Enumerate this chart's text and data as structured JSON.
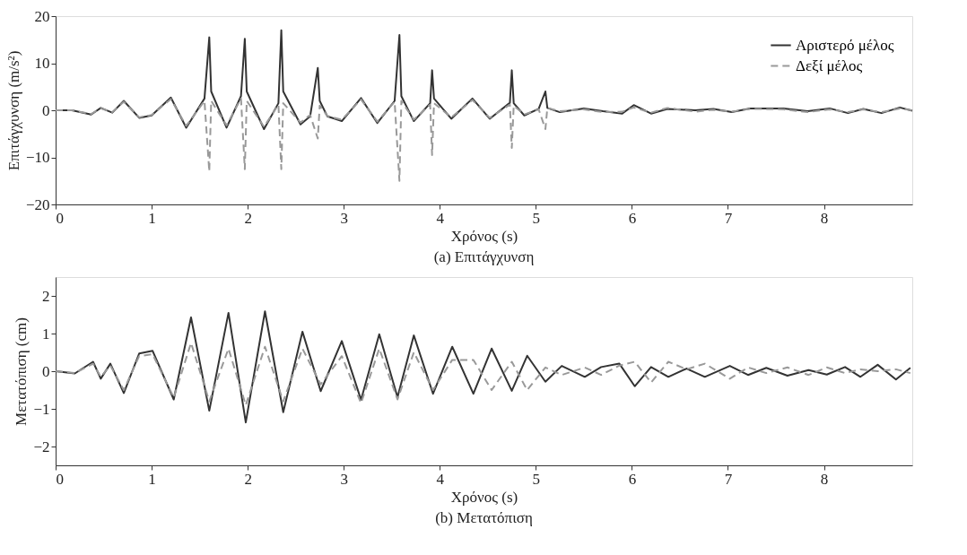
{
  "chart_data": [
    {
      "type": "line",
      "title": "(a) Επιτάγχυνση",
      "xlabel": "Χρόνος (s)",
      "ylabel": "Επιτάγχυνση (m/s²)",
      "x": [
        0,
        0.17,
        0.37,
        0.47,
        0.59,
        0.71,
        0.87,
        1.0,
        1.2,
        1.36,
        1.55,
        1.6,
        1.62,
        1.78,
        1.93,
        1.97,
        1.99,
        2.17,
        2.32,
        2.35,
        2.37,
        2.55,
        2.65,
        2.73,
        2.75,
        2.83,
        2.98,
        3.18,
        3.35,
        3.53,
        3.58,
        3.6,
        3.73,
        3.9,
        3.92,
        3.94,
        4.12,
        4.34,
        4.52,
        4.73,
        4.75,
        4.77,
        4.88,
        5.03,
        5.1,
        5.12,
        5.25,
        5.5,
        5.7,
        5.9,
        6.02,
        6.2,
        6.37,
        6.66,
        6.85,
        7.04,
        7.23,
        7.58,
        7.83,
        8.06,
        8.25,
        8.41,
        8.6,
        8.79,
        8.92
      ],
      "series": [
        {
          "name": "Αριστερό μέλος",
          "color": "#333333",
          "line_style": "solid",
          "values": [
            0,
            0,
            -0.9,
            0.5,
            -0.5,
            2,
            -1.6,
            -1.1,
            2.7,
            -3.7,
            2.5,
            15.5,
            4,
            -3.7,
            3,
            15.2,
            4,
            -4,
            1.5,
            17,
            4,
            -3,
            -1.3,
            9,
            2,
            -1.3,
            -2.3,
            2.6,
            -2.7,
            2,
            16,
            3,
            -2.3,
            1.5,
            8.5,
            2.5,
            -1.8,
            2.5,
            -1.8,
            1.6,
            8.5,
            1.5,
            -1.1,
            0.3,
            4,
            0.5,
            -0.4,
            0.4,
            -0.2,
            -0.7,
            1.1,
            -0.7,
            0.3,
            0,
            0.3,
            -0.4,
            0.4,
            0.4,
            -0.2,
            0.4,
            -0.6,
            0.3,
            -0.6,
            0.6,
            -0.1
          ]
        },
        {
          "name": "Δεξί μέλος",
          "color": "#999999",
          "line_style": "dashed",
          "values": [
            0,
            0,
            -0.8,
            0.4,
            -0.4,
            1.8,
            -1.5,
            -1.0,
            2.4,
            -3.3,
            2,
            -13,
            2,
            -3.2,
            2.5,
            -12.5,
            2,
            -3.5,
            1.2,
            -12.5,
            1.5,
            -2.6,
            -1.0,
            -6,
            1,
            -1.2,
            -2.0,
            2.3,
            -2.4,
            1.8,
            -15,
            2,
            -2.0,
            1.2,
            -9.5,
            1.5,
            -1.5,
            2.2,
            -1.6,
            1.2,
            -8,
            1,
            -0.9,
            0.2,
            -4,
            0.5,
            -0.2,
            0.2,
            -0.4,
            -0.3,
            0.6,
            -0.5,
            0.5,
            -0.3,
            0.1,
            -0.3,
            0.3,
            0.2,
            -0.4,
            0.2,
            -0.4,
            0.2,
            -0.4,
            0.4,
            0.0
          ]
        }
      ],
      "xlim": [
        0,
        8.92
      ],
      "xticks": [
        0,
        1,
        2,
        3,
        4,
        5,
        6,
        7,
        8
      ],
      "ylim": [
        -20,
        20
      ],
      "yticks": [
        -20,
        -10,
        0,
        10,
        20
      ],
      "grid": false,
      "legend": "top right"
    },
    {
      "type": "line",
      "title": "(b) Μετατόπιση",
      "xlabel": "Χρόνος (s)",
      "ylabel": "Μετατόπιση (cm)",
      "x": [
        0,
        0.2,
        0.39,
        0.47,
        0.57,
        0.71,
        0.87,
        1.01,
        1.23,
        1.41,
        1.6,
        1.8,
        1.98,
        2.18,
        2.37,
        2.57,
        2.76,
        2.98,
        3.18,
        3.37,
        3.56,
        3.73,
        3.93,
        4.13,
        4.35,
        4.54,
        4.75,
        4.91,
        5.1,
        5.27,
        5.51,
        5.68,
        5.87,
        6.03,
        6.2,
        6.38,
        6.57,
        6.76,
        7.02,
        7.21,
        7.4,
        7.62,
        7.84,
        8.03,
        8.22,
        8.38,
        8.56,
        8.75,
        8.9
      ],
      "series": [
        {
          "name": "Αριστερό μέλος",
          "color": "#333333",
          "line_style": "solid",
          "values": [
            0,
            -0.06,
            0.25,
            -0.2,
            0.2,
            -0.58,
            0.47,
            0.54,
            -0.75,
            1.43,
            -1.05,
            1.55,
            -1.36,
            1.59,
            -1.09,
            1.05,
            -0.53,
            0.8,
            -0.76,
            0.98,
            -0.69,
            0.95,
            -0.6,
            0.65,
            -0.6,
            0.6,
            -0.52,
            0.41,
            -0.28,
            0.14,
            -0.15,
            0.11,
            0.2,
            -0.4,
            0.11,
            -0.15,
            0.07,
            -0.15,
            0.14,
            -0.1,
            0.09,
            -0.12,
            0.03,
            -0.09,
            0.11,
            -0.15,
            0.17,
            -0.22,
            0.09
          ]
        },
        {
          "name": "Δεξί μέλος",
          "color": "#999999",
          "line_style": "dashed",
          "values": [
            0,
            -0.05,
            0.2,
            -0.15,
            0.15,
            -0.5,
            0.4,
            0.45,
            -0.7,
            0.75,
            -0.8,
            0.6,
            -0.9,
            0.65,
            -0.8,
            0.6,
            -0.35,
            0.4,
            -0.85,
            0.6,
            -0.75,
            0.5,
            -0.5,
            0.3,
            0.3,
            -0.5,
            0.25,
            -0.5,
            0.1,
            -0.1,
            0.1,
            -0.1,
            0.15,
            0.25,
            -0.3,
            0.25,
            0.05,
            0.2,
            -0.2,
            0.1,
            -0.05,
            0.1,
            -0.1,
            0.1,
            -0.05,
            0.05,
            0,
            0.05,
            -0.05
          ]
        }
      ],
      "xlim": [
        0,
        8.92
      ],
      "xticks": [
        0,
        1,
        2,
        3,
        4,
        5,
        6,
        7,
        8
      ],
      "ylim": [
        -2.5,
        2.5
      ],
      "yticks": [
        -2,
        -1,
        0,
        1,
        2
      ],
      "grid": false,
      "legend": "top right"
    }
  ]
}
